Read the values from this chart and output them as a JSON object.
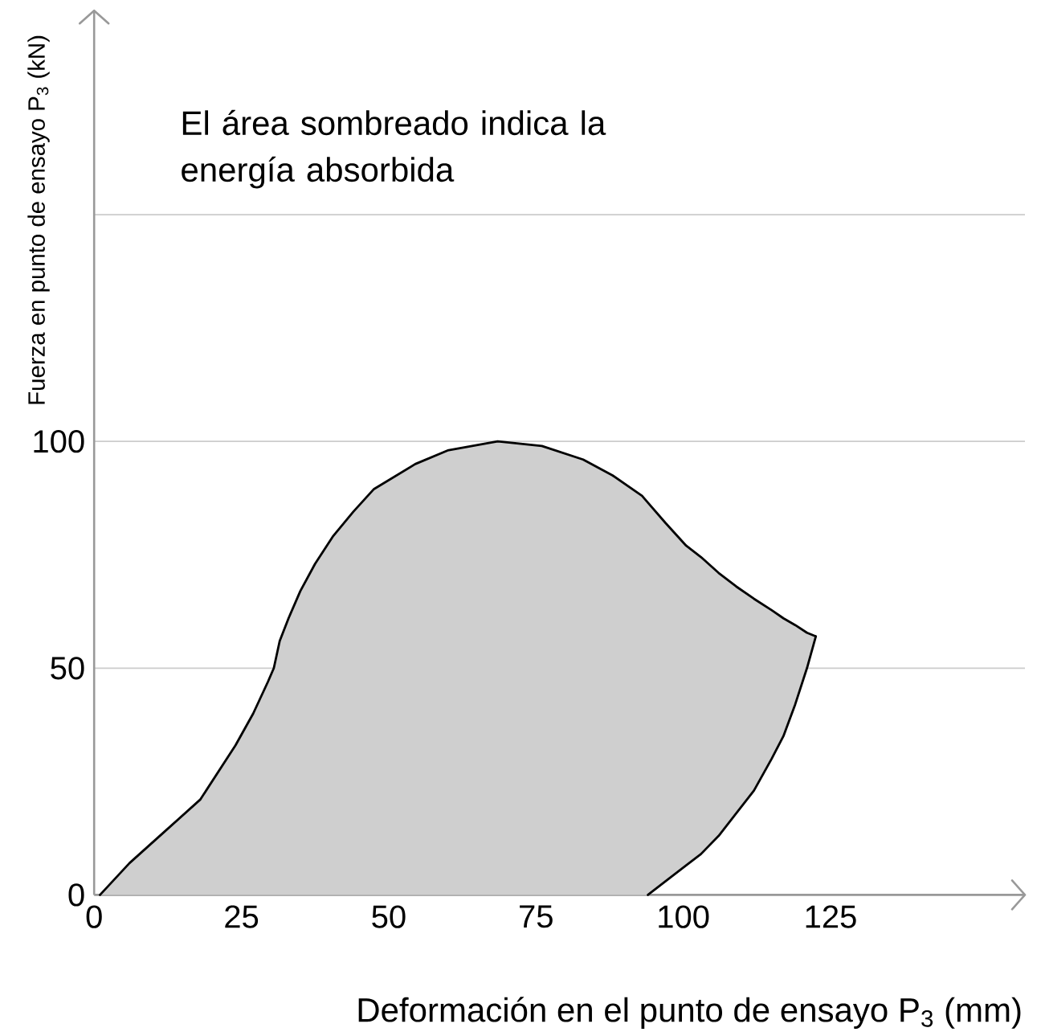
{
  "chart_data": {
    "type": "line",
    "xlabel": "Deformación en el punto de ensayo P$_{3}$ (mm)",
    "ylabel": "Fuerza en punto de ensayo P$_{3}$ (kN)",
    "annotations": [
      "El área sombreado indica la energía absorbida"
    ],
    "series": [
      {
        "color": "#000000",
        "x": [
          1,
          6,
          12,
          18,
          24,
          27,
          29.5,
          30.5,
          31.5,
          33,
          35,
          37.5,
          40.5,
          44,
          47.5,
          54.5,
          60,
          68.5,
          76,
          83,
          88,
          93,
          94,
          97,
          100.5,
          103,
          106,
          109,
          112,
          115,
          117,
          119,
          121,
          122.5
        ],
        "values": [
          0,
          7,
          14,
          21,
          33,
          40,
          47,
          50,
          56,
          61,
          67,
          73,
          79,
          84.5,
          89.5,
          95,
          98,
          100,
          99,
          96,
          92.5,
          88,
          86.5,
          82,
          77,
          74.5,
          71,
          68,
          65.3,
          62.8,
          61,
          59.5,
          57.8,
          57
        ],
        "lower": [
          0,
          0,
          0,
          0,
          0,
          0,
          0,
          0,
          0,
          0,
          0,
          0,
          0,
          0,
          0,
          0,
          0,
          0,
          0,
          0,
          0,
          0,
          0,
          3,
          6.5,
          9,
          13,
          18,
          23,
          30,
          35,
          42,
          50,
          57
        ],
        "upper": [
          0,
          7,
          14,
          21,
          33,
          40,
          47,
          50,
          56,
          61,
          67,
          73,
          79,
          84.5,
          89.5,
          95,
          98,
          100,
          99,
          96,
          92.5,
          88,
          86.5,
          82,
          77,
          74.5,
          71,
          68,
          65.3,
          62.8,
          61,
          59.5,
          57.8,
          57
        ]
      },
      {
        "color": "#000000",
        "x": [
          94,
          97,
          100.5,
          103,
          106,
          109,
          112,
          115,
          117,
          119,
          121,
          122.5
        ],
        "values": [
          0,
          3,
          6.5,
          9,
          13,
          18,
          23,
          30,
          35,
          42,
          50,
          57
        ]
      }
    ],
    "xlim": [
      0,
      158
    ],
    "ylim": [
      0,
      195
    ],
    "xticks": [
      0,
      25,
      50,
      75,
      100,
      125
    ],
    "yticks": [
      0,
      50,
      100,
      {
        "value": 150,
        "label": null
      }
    ],
    "grid": "y"
  }
}
